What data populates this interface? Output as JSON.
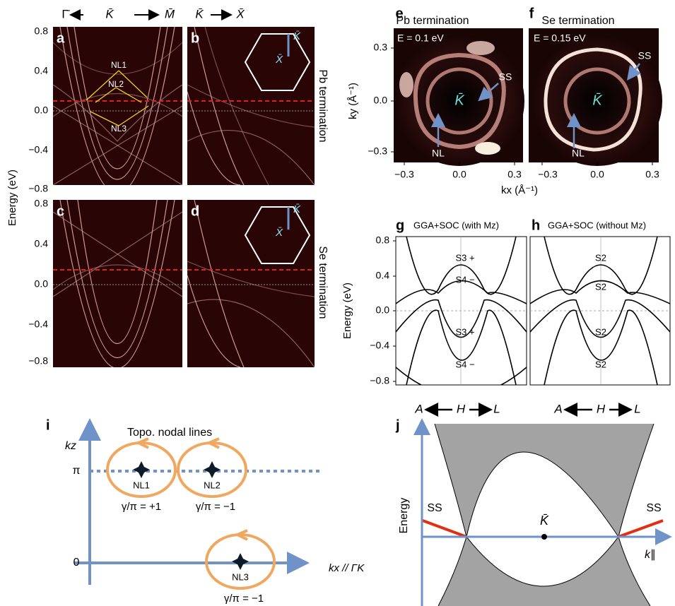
{
  "path_labels": {
    "left": [
      "Γ̄",
      "K̄",
      "M̄"
    ],
    "right": [
      "K̄",
      "X̄"
    ]
  },
  "left_axis": {
    "title": "Energy (eV)",
    "ticks_top": [
      "0.8",
      "0.4",
      "0.0",
      "−0.4",
      "−0.8"
    ],
    "ticks_bottom": [
      "0.8",
      "0.4",
      "0.0",
      "−0.4",
      "−0.8"
    ]
  },
  "terminations": [
    "Pb termination",
    "Se termination"
  ],
  "panel_a": {
    "label": "a",
    "annotations": [
      "NL1",
      "NL2",
      "NL3"
    ]
  },
  "panel_b": {
    "label": "b",
    "bz_labels": [
      "K̄",
      "X̄"
    ]
  },
  "panel_c": {
    "label": "c"
  },
  "panel_d": {
    "label": "d",
    "bz_labels": [
      "K̄",
      "X̄"
    ]
  },
  "panel_e": {
    "label": "e",
    "title": "Pb termination",
    "energy": "E = 0.1 eV",
    "center": "K̄",
    "annotations": [
      "SS",
      "NL"
    ]
  },
  "panel_f": {
    "label": "f",
    "title": "Se termination",
    "energy": "E = 0.15 eV",
    "center": "K̄",
    "annotations": [
      "SS",
      "NL"
    ]
  },
  "fermi_axes": {
    "y_title": "ky (Å⁻¹)",
    "x_title": "kx (Å⁻¹)",
    "yticks": [
      "0.3",
      "0.0",
      "−0.3"
    ],
    "xticks_e": [
      "−0.3",
      "0.0",
      "0.3"
    ],
    "xticks_f": [
      "−0.3",
      "0.0",
      "0.3"
    ]
  },
  "panel_g": {
    "label": "g",
    "title": "GGA+SOC (with Mz)",
    "band_labels": [
      "S3 +",
      "S4 −",
      "S3 +",
      "S4 −"
    ]
  },
  "panel_h": {
    "label": "h",
    "title": "GGA+SOC (without Mz)",
    "band_labels": [
      "S2",
      "S2",
      "S2",
      "S2"
    ]
  },
  "band_axes": {
    "y_title": "Energy (eV)",
    "yticks": [
      "0.8",
      "0.4",
      "0.0",
      "−0.4",
      "−0.8"
    ],
    "path_g": [
      "A",
      "H",
      "L"
    ],
    "path_h": [
      "A",
      "H",
      "L"
    ]
  },
  "panel_i": {
    "label": "i",
    "title": "Topo. nodal lines",
    "y_axis": "kz",
    "x_axis": "kx // ΓK",
    "yticks": [
      "π",
      "0"
    ],
    "nodes": [
      "NL1",
      "NL2",
      "NL3"
    ],
    "phases": [
      "γ/π = +1",
      "γ/π = −1",
      "γ/π = −1"
    ]
  },
  "panel_j": {
    "label": "j",
    "y_axis": "Energy",
    "x_axis": "k∥",
    "center": "K̄",
    "annotations": [
      "SS",
      "SS"
    ]
  }
}
